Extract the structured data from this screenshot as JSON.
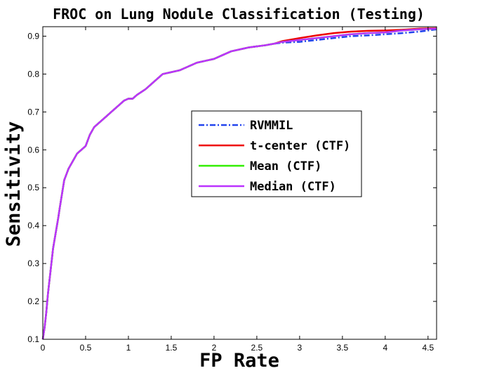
{
  "chart_data": {
    "type": "line",
    "title": "FROC on Lung Nodule Classification (Testing)",
    "xlabel": "FP Rate",
    "ylabel": "Sensitivity",
    "xlim": [
      0,
      4.6
    ],
    "ylim": [
      0.1,
      0.925
    ],
    "x_ticks": [
      "0",
      "0.5",
      "1",
      "1.5",
      "2",
      "2.5",
      "3",
      "3.5",
      "4",
      "4.5"
    ],
    "y_ticks": [
      "0.1",
      "0.2",
      "0.3",
      "0.4",
      "0.5",
      "0.6",
      "0.7",
      "0.8",
      "0.9"
    ],
    "grid": false,
    "legend_placement": "center-right",
    "colors": {
      "rvmmil": "#2244ee",
      "t_center": "#ee0000",
      "mean": "#33ee00",
      "median": "#bb33ff"
    },
    "shared_x": [
      0,
      0.02,
      0.04,
      0.06,
      0.08,
      0.1,
      0.12,
      0.15,
      0.18,
      0.2,
      0.25,
      0.3,
      0.35,
      0.4,
      0.5,
      0.55,
      0.6,
      0.7,
      0.75,
      0.8,
      0.9,
      0.95,
      1.0,
      1.05,
      1.1,
      1.2,
      1.3,
      1.4,
      1.5,
      1.6,
      1.7,
      1.8,
      1.9,
      2.0,
      2.1,
      2.2,
      2.3,
      2.4,
      2.5,
      2.6,
      2.7
    ],
    "shared_y": [
      0.1,
      0.13,
      0.17,
      0.22,
      0.26,
      0.3,
      0.34,
      0.38,
      0.42,
      0.45,
      0.52,
      0.55,
      0.57,
      0.59,
      0.61,
      0.64,
      0.66,
      0.68,
      0.69,
      0.7,
      0.72,
      0.73,
      0.735,
      0.735,
      0.745,
      0.76,
      0.78,
      0.8,
      0.805,
      0.81,
      0.82,
      0.83,
      0.835,
      0.84,
      0.85,
      0.86,
      0.865,
      0.87,
      0.873,
      0.876,
      0.88
    ],
    "series": [
      {
        "name": "RVMMIL",
        "style": "dash-dot",
        "x": [
          2.7,
          2.8,
          3.0,
          3.2,
          3.4,
          3.6,
          3.8,
          4.0,
          4.2,
          4.4,
          4.6
        ],
        "y": [
          0.88,
          0.883,
          0.885,
          0.89,
          0.895,
          0.9,
          0.902,
          0.905,
          0.908,
          0.912,
          0.918
        ]
      },
      {
        "name": "t-center (CTF)",
        "style": "solid",
        "x": [
          2.7,
          2.8,
          3.0,
          3.2,
          3.4,
          3.6,
          3.8,
          4.0,
          4.2,
          4.4,
          4.6
        ],
        "y": [
          0.88,
          0.887,
          0.895,
          0.902,
          0.908,
          0.912,
          0.914,
          0.915,
          0.917,
          0.92,
          0.921
        ]
      },
      {
        "name": "Mean (CTF)",
        "style": "solid",
        "x": [
          2.7,
          2.8,
          3.0,
          3.2,
          3.4,
          3.6,
          3.8,
          4.0,
          4.2,
          4.4,
          4.6
        ],
        "y": [
          0.88,
          0.885,
          0.89,
          0.895,
          0.9,
          0.905,
          0.908,
          0.91,
          0.915,
          0.918,
          0.92
        ]
      },
      {
        "name": "Median (CTF)",
        "style": "solid",
        "x": [
          2.7,
          2.8,
          3.0,
          3.2,
          3.4,
          3.6,
          3.8,
          4.0,
          4.2,
          4.4,
          4.6
        ],
        "y": [
          0.88,
          0.885,
          0.89,
          0.895,
          0.9,
          0.905,
          0.908,
          0.91,
          0.915,
          0.918,
          0.92
        ]
      }
    ]
  }
}
